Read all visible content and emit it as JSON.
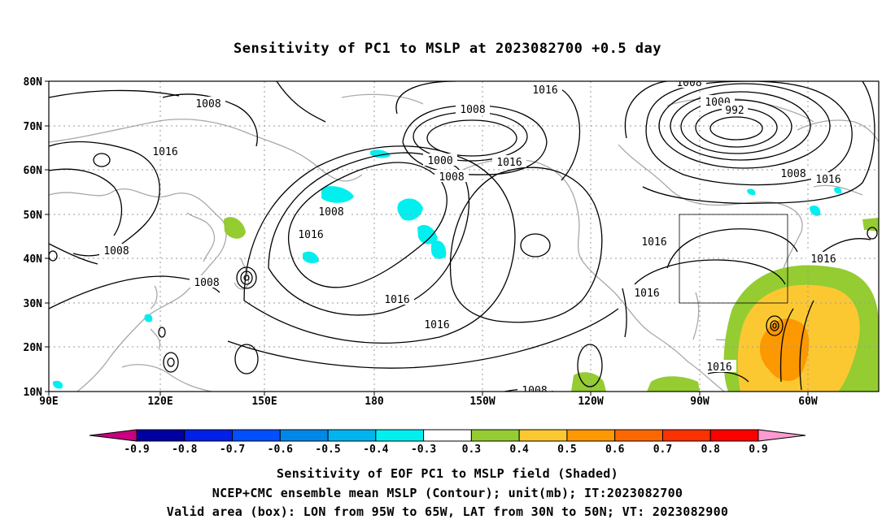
{
  "title": "Sensitivity of PC1 to MSLP at 2023082700 +0.5 day",
  "map": {
    "lat_labels": [
      "80N",
      "70N",
      "60N",
      "50N",
      "40N",
      "30N",
      "20N",
      "10N"
    ],
    "lon_labels": [
      "90E",
      "120E",
      "150E",
      "180",
      "150W",
      "120W",
      "90W",
      "60W"
    ],
    "contour_labels": [
      "1016",
      "1008",
      "1008",
      "1016",
      "1008",
      "1016",
      "1008",
      "1008",
      "1008",
      "1016",
      "1000",
      "992",
      "1008",
      "1016",
      "1016",
      "1016",
      "1016",
      "1016",
      "1016",
      "1016",
      "1008",
      "1008",
      "1000",
      "1008"
    ],
    "valid_area": {
      "lon": [
        "95W",
        "65W"
      ],
      "lat": [
        "30N",
        "50N"
      ]
    }
  },
  "colorbar": {
    "colors": [
      "#c8007f",
      "#0000a0",
      "#0020e8",
      "#0050ff",
      "#0088e8",
      "#00b4f0",
      "#00f0f0",
      "#ffffff",
      "#94cc32",
      "#fcc832",
      "#fc9800",
      "#fc6800",
      "#fc3200",
      "#fc0000",
      "#ff9ad0"
    ],
    "labels": [
      "-0.9",
      "-0.8",
      "-0.7",
      "-0.6",
      "-0.5",
      "-0.4",
      "-0.3",
      "0.3",
      "0.4",
      "0.5",
      "0.6",
      "0.7",
      "0.8",
      "0.9"
    ]
  },
  "captions": [
    "Sensitivity of EOF PC1 to MSLP field (Shaded)",
    "NCEP+CMC ensemble mean MSLP (Contour); unit(mb); IT:2023082700",
    "Valid area (box): LON from 95W to 65W, LAT from 30N to 50N; VT: 2023082900"
  ]
}
